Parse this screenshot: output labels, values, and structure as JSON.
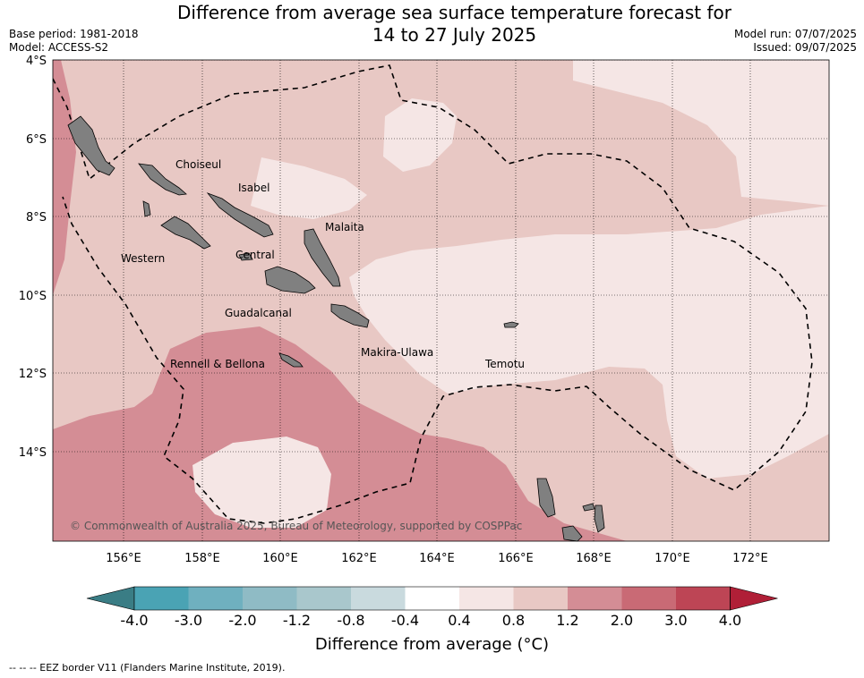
{
  "title": {
    "line1": "Difference from average sea surface temperature forecast for",
    "line2": "14 to 27 July 2025"
  },
  "meta": {
    "base_period": "Base period: 1981-2018",
    "model": "Model: ACCESS-S2",
    "model_run": "Model run: 07/07/2025",
    "issued": "Issued: 09/07/2025"
  },
  "map": {
    "lat_ticks": [
      "4°S",
      "6°S",
      "8°S",
      "10°S",
      "12°S",
      "14°S"
    ],
    "lon_ticks": [
      "156°E",
      "158°E",
      "160°E",
      "162°E",
      "164°E",
      "166°E",
      "168°E",
      "170°E",
      "172°E"
    ],
    "places": [
      {
        "id": "choiseul",
        "label": "Choiseul"
      },
      {
        "id": "isabel",
        "label": "Isabel"
      },
      {
        "id": "malaita",
        "label": "Malaita"
      },
      {
        "id": "western",
        "label": "Western"
      },
      {
        "id": "central",
        "label": "Central"
      },
      {
        "id": "guadalcanal",
        "label": "Guadalcanal"
      },
      {
        "id": "makira",
        "label": "Makira-Ulawa"
      },
      {
        "id": "temotu",
        "label": "Temotu"
      },
      {
        "id": "rennell",
        "label": "Rennell & Bellona"
      }
    ],
    "copyright": "© Commonwealth of Australia 2025, Bureau of Meteorology, supported by COSPPac",
    "colors": {
      "c_04_08": "#f5e6e5",
      "c_08_12": "#e8c8c4",
      "c_12_20": "#d48d95",
      "land": "#808080"
    }
  },
  "colorbar": {
    "labels": [
      "-4.0",
      "-3.0",
      "-2.0",
      "-1.2",
      "-0.8",
      "-0.4",
      "0.4",
      "0.8",
      "1.2",
      "2.0",
      "3.0",
      "4.0"
    ],
    "colors": [
      "#3e8e99",
      "#4aa3b4",
      "#6fb0bf",
      "#8fbbc5",
      "#a9c7cc",
      "#c9dade",
      "#ffffff",
      "#f5e6e5",
      "#e8c8c4",
      "#d48d95",
      "#c96a75",
      "#bd4555"
    ],
    "under_color": "#3a7d85",
    "over_color": "#b01f37",
    "title": "Difference from average (°C)"
  },
  "footer": "-- -- -- EEZ border V11 (Flanders Marine Institute, 2019)."
}
